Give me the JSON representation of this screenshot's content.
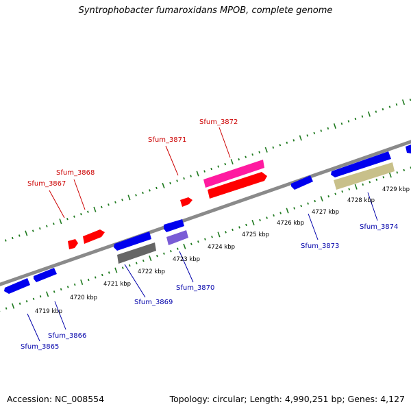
{
  "title": "Syntrophobacter fumaroxidans MPOB, complete genome",
  "footer": {
    "accession": "Accession: NC_008554",
    "topology": "Topology: circular; Length: 4,990,251 bp; Genes: 4,127"
  },
  "colors": {
    "backbone": "#8a8a8a",
    "forward_ticks": "#1f7a1f",
    "reverse_ticks": "#1f7a1f",
    "label_red": "#cc0000",
    "label_blue": "#0000aa"
  },
  "kbp_labels": [
    "4719 kbp",
    "4720 kbp",
    "4721 kbp",
    "4722 kbp",
    "4723 kbp",
    "4724 kbp",
    "4725 kbp",
    "4726 kbp",
    "4727 kbp",
    "4728 kbp",
    "4729 kbp"
  ],
  "genes_forward": [
    {
      "name": "Sfum_3867",
      "color": "#ff0000"
    },
    {
      "name": "Sfum_3868",
      "color": "#ff0000"
    },
    {
      "name": "Sfum_3871",
      "color": "#ff0000"
    },
    {
      "name": "Sfum_3872",
      "color": "#ff1aa0"
    }
  ],
  "genes_reverse": [
    {
      "name": "Sfum_3865",
      "color": "#0000ee"
    },
    {
      "name": "Sfum_3866",
      "color": "#0000ee"
    },
    {
      "name": "Sfum_3869",
      "color": "#0000ee"
    },
    {
      "name": "Sfum_3870",
      "color": "#0000ee"
    },
    {
      "name": "Sfum_3873",
      "color": "#0000ee"
    },
    {
      "name": "Sfum_3874",
      "color": "#0000ee"
    }
  ],
  "extra_features": [
    {
      "type": "forward",
      "color": "#ff0000"
    },
    {
      "type": "reverse",
      "color": "#666666"
    },
    {
      "type": "reverse",
      "color": "#7a5cd6"
    },
    {
      "type": "forward",
      "color": "#c8c08a"
    },
    {
      "type": "reverse",
      "color": "#0000ee"
    }
  ]
}
